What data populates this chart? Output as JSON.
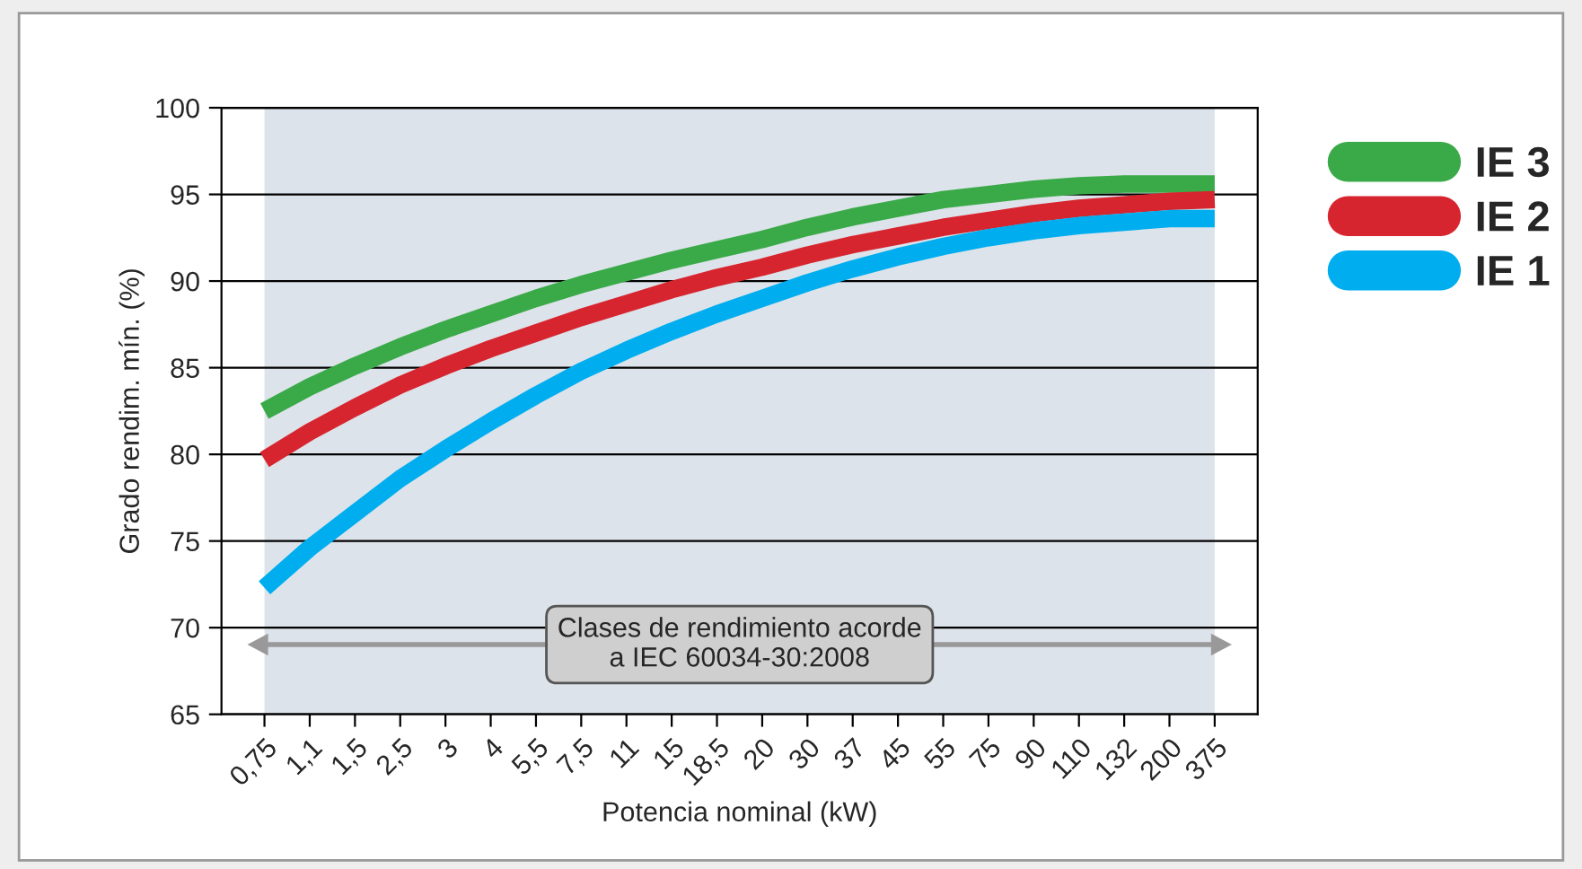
{
  "chart_data": {
    "type": "line",
    "xlabel": "Potencia nominal (kW)",
    "ylabel": "Grado rendim. mín. (%)",
    "categories": [
      "0,75",
      "1,1",
      "1,5",
      "2,5",
      "3",
      "4",
      "5,5",
      "7,5",
      "11",
      "15",
      "18,5",
      "20",
      "30",
      "37",
      "45",
      "55",
      "75",
      "90",
      "110",
      "132",
      "200",
      "375"
    ],
    "series": [
      {
        "name": "IE 3",
        "color": "#3aaa49",
        "values": [
          82.5,
          83.9,
          85.1,
          86.2,
          87.2,
          88.1,
          89.0,
          89.8,
          90.5,
          91.2,
          91.8,
          92.4,
          93.1,
          93.7,
          94.2,
          94.7,
          95.0,
          95.3,
          95.5,
          95.6,
          95.6,
          95.6
        ]
      },
      {
        "name": "IE 2",
        "color": "#d7252f",
        "values": [
          79.7,
          81.3,
          82.7,
          84.0,
          85.1,
          86.1,
          87.0,
          87.9,
          88.7,
          89.5,
          90.2,
          90.8,
          91.5,
          92.1,
          92.6,
          93.1,
          93.5,
          93.9,
          94.2,
          94.4,
          94.6,
          94.7
        ]
      },
      {
        "name": "IE 1",
        "color": "#00aeef",
        "values": [
          72.3,
          74.6,
          76.6,
          78.6,
          80.3,
          81.9,
          83.4,
          84.8,
          86.0,
          87.1,
          88.1,
          89.0,
          89.9,
          90.7,
          91.4,
          92.0,
          92.5,
          92.9,
          93.2,
          93.4,
          93.6,
          93.6
        ]
      }
    ],
    "ylim": [
      65,
      100
    ],
    "yticks": [
      65,
      70,
      75,
      80,
      85,
      90,
      95,
      100
    ],
    "grid": "y",
    "legend": "right",
    "marker": "none",
    "line_style": "solid",
    "bands": [
      {
        "axis": "x",
        "from": "0,75",
        "to": "375",
        "color": "#dde3ea"
      }
    ],
    "annotations": [
      "Clases de rendimiento acorde\na IEC 60034-30:2008"
    ]
  }
}
